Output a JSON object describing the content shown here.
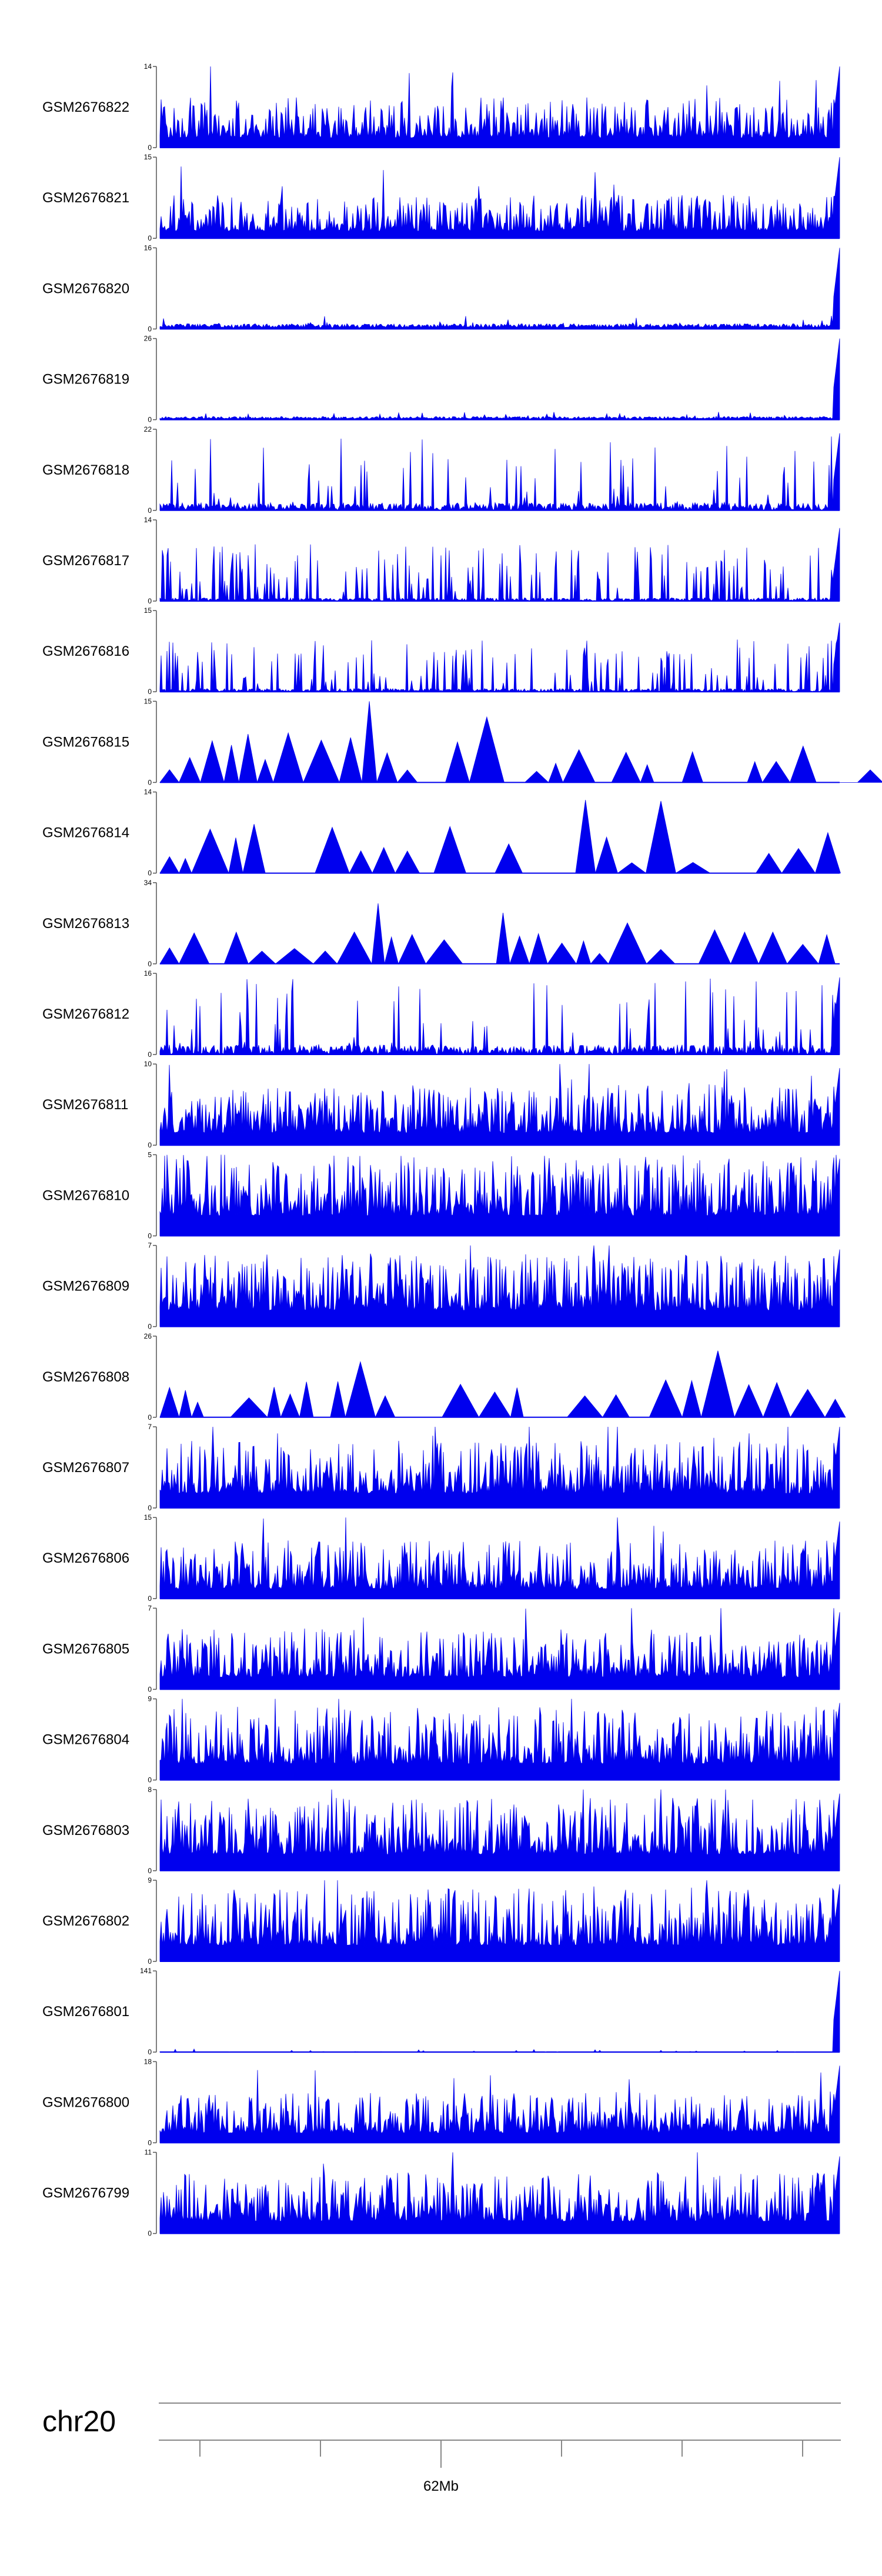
{
  "figure": {
    "chromosome_label": "chr20",
    "axis_tick_label": "62Mb",
    "track_color": "#0000ee"
  },
  "chart_data": {
    "type": "area",
    "title": "",
    "xlabel": "chr20",
    "ylabel": "",
    "x_tick_labels": [
      "62Mb"
    ],
    "y_min_label": "0",
    "tracks": [
      {
        "name": "GSM2676822",
        "ymax": 14,
        "seed": 101,
        "style": "dense",
        "peak": 1.0,
        "profile": [
          0.12,
          0.5
        ]
      },
      {
        "name": "GSM2676821",
        "ymax": 15,
        "seed": 102,
        "style": "dense",
        "peak": 1.0,
        "profile": [
          0.09,
          0.45
        ]
      },
      {
        "name": "GSM2676820",
        "ymax": 16,
        "seed": 103,
        "style": "low",
        "peak": 1.0,
        "profile": [
          0.05,
          0.18
        ]
      },
      {
        "name": "GSM2676819",
        "ymax": 26,
        "seed": 104,
        "style": "low",
        "peak": 1.0,
        "profile": [
          0.03,
          0.13
        ]
      },
      {
        "name": "GSM2676818",
        "ymax": 22,
        "seed": 105,
        "style": "spiky",
        "peak": 0.95,
        "profile": [
          0.08,
          0.6
        ]
      },
      {
        "name": "GSM2676817",
        "ymax": 14,
        "seed": 106,
        "style": "sparse",
        "peak": 0.9,
        "profile": [
          0.1,
          0.6
        ]
      },
      {
        "name": "GSM2676816",
        "ymax": 15,
        "seed": 107,
        "style": "sparse",
        "peak": 0.85,
        "profile": [
          0.1,
          0.55
        ]
      },
      {
        "name": "GSM2676815",
        "ymax": 15,
        "seed": 108,
        "style": "tri",
        "peak": 0.6,
        "profile": [
          0.2,
          0.5
        ]
      },
      {
        "name": "GSM2676814",
        "ymax": 14,
        "seed": 109,
        "style": "tri",
        "peak": 0.75,
        "profile": [
          0.1,
          0.5
        ]
      },
      {
        "name": "GSM2676813",
        "ymax": 34,
        "seed": 110,
        "style": "tri",
        "peak": 0.95,
        "profile": [
          0.05,
          0.3
        ]
      },
      {
        "name": "GSM2676812",
        "ymax": 16,
        "seed": 111,
        "style": "spiky",
        "peak": 0.95,
        "profile": [
          0.1,
          0.6
        ]
      },
      {
        "name": "GSM2676811",
        "ymax": 10,
        "seed": 112,
        "style": "dense",
        "peak": 0.95,
        "profile": [
          0.15,
          0.6
        ]
      },
      {
        "name": "GSM2676810",
        "ymax": 5,
        "seed": 113,
        "style": "dense",
        "peak": 0.95,
        "profile": [
          0.25,
          0.75
        ]
      },
      {
        "name": "GSM2676809",
        "ymax": 7,
        "seed": 114,
        "style": "dense",
        "peak": 0.95,
        "profile": [
          0.2,
          0.7
        ]
      },
      {
        "name": "GSM2676808",
        "ymax": 26,
        "seed": 115,
        "style": "tri",
        "peak": 0.95,
        "profile": [
          0.08,
          0.35
        ]
      },
      {
        "name": "GSM2676807",
        "ymax": 7,
        "seed": 116,
        "style": "dense",
        "peak": 1.0,
        "profile": [
          0.18,
          0.65
        ]
      },
      {
        "name": "GSM2676806",
        "ymax": 15,
        "seed": 117,
        "style": "dense",
        "peak": 0.95,
        "profile": [
          0.12,
          0.6
        ]
      },
      {
        "name": "GSM2676805",
        "ymax": 7,
        "seed": 118,
        "style": "dense",
        "peak": 0.95,
        "profile": [
          0.15,
          0.6
        ]
      },
      {
        "name": "GSM2676804",
        "ymax": 9,
        "seed": 119,
        "style": "dense",
        "peak": 0.95,
        "profile": [
          0.2,
          0.7
        ]
      },
      {
        "name": "GSM2676803",
        "ymax": 8,
        "seed": 120,
        "style": "dense",
        "peak": 0.95,
        "profile": [
          0.2,
          0.7
        ]
      },
      {
        "name": "GSM2676802",
        "ymax": 9,
        "seed": 121,
        "style": "dense",
        "peak": 0.95,
        "profile": [
          0.2,
          0.7
        ]
      },
      {
        "name": "GSM2676801",
        "ymax": 141,
        "seed": 122,
        "style": "flat",
        "peak": 1.0,
        "profile": [
          0.01,
          0.04
        ]
      },
      {
        "name": "GSM2676800",
        "ymax": 18,
        "seed": 123,
        "style": "dense",
        "peak": 0.95,
        "profile": [
          0.12,
          0.5
        ]
      },
      {
        "name": "GSM2676799",
        "ymax": 11,
        "seed": 124,
        "style": "dense",
        "peak": 0.95,
        "profile": [
          0.15,
          0.6
        ]
      }
    ]
  }
}
